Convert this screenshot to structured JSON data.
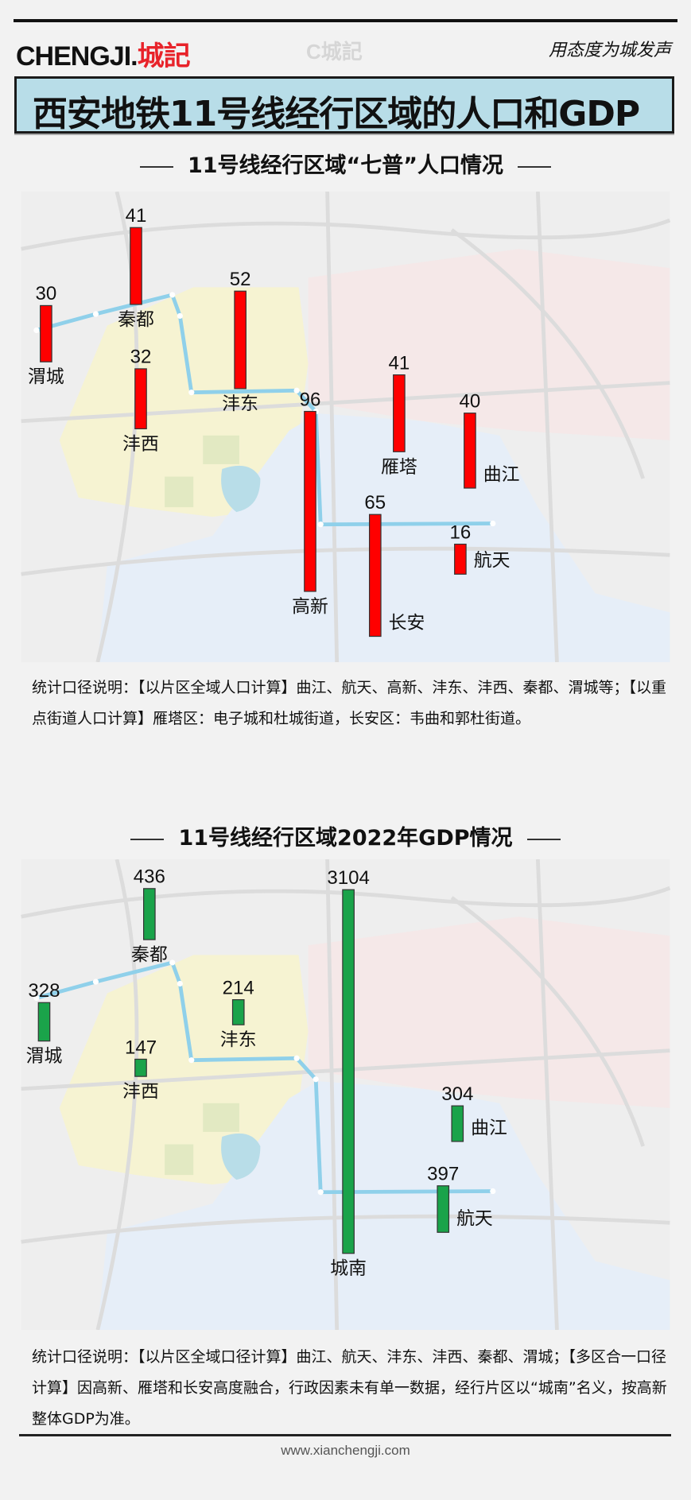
{
  "header": {
    "logo_latin": "CHENGJI.",
    "logo_cn": "城記",
    "watermark": "C城記",
    "slogan": "用态度为城发声"
  },
  "title": "西安地铁11号线经行区域的人口和GDP",
  "population": {
    "heading": "11号线经行区域“七普”人口情况",
    "bar_color": "#ff0000",
    "items": [
      {
        "name": "渭城",
        "value": 30
      },
      {
        "name": "秦都",
        "value": 41
      },
      {
        "name": "沣西",
        "value": 32
      },
      {
        "name": "沣东",
        "value": 52
      },
      {
        "name": "高新",
        "value": 96
      },
      {
        "name": "长安",
        "value": 65
      },
      {
        "name": "雁塔",
        "value": 41
      },
      {
        "name": "曲江",
        "value": 40
      },
      {
        "name": "航天",
        "value": 16
      }
    ],
    "note": "统计口径说明：【以片区全域人口计算】曲江、航天、高新、沣东、沣西、秦都、渭城等；【以重点街道人口计算】雁塔区：电子城和杜城街道，长安区：韦曲和郭杜街道。"
  },
  "gdp": {
    "heading": "11号线经行区域2022年GDP情况",
    "bar_color": "#1aa34a",
    "items": [
      {
        "name": "渭城",
        "value": 328
      },
      {
        "name": "秦都",
        "value": 436
      },
      {
        "name": "沣西",
        "value": 147
      },
      {
        "name": "沣东",
        "value": 214
      },
      {
        "name": "城南",
        "value": 3104
      },
      {
        "name": "曲江",
        "value": 304
      },
      {
        "name": "航天",
        "value": 397
      }
    ],
    "note": "统计口径说明：【以片区全域口径计算】曲江、航天、沣东、沣西、秦都、渭城；【多区合一口径计算】因高新、雁塔和长安高度融合，行政因素未有单一数据，经行片区以“城南”名义，按高新整体GDP为准。"
  },
  "footer": "www.xianchengji.com",
  "colors": {
    "metro_line": "#8fd0ea",
    "title_bg": "#b8dde8"
  }
}
